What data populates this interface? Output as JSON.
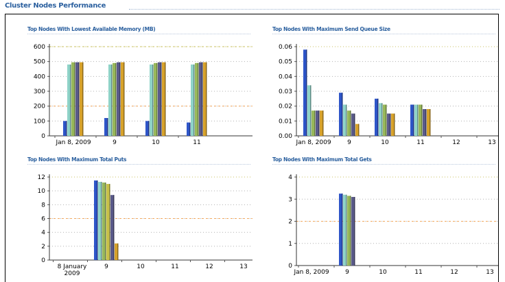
{
  "page": {
    "title": "Cluster Nodes Performance"
  },
  "colors": [
    "#2e55c8",
    "#8fd3c8",
    "#98b85a",
    "#5a5a8a",
    "#d7a22a"
  ],
  "chart_data": [
    {
      "id": "memory",
      "type": "bar",
      "title": "Top Nodes With Lowest Available Memory (MB)",
      "categories": [
        "Jan 8, 2009",
        "9",
        "10",
        "11"
      ],
      "series": [
        {
          "values": [
            100,
            120,
            100,
            90
          ]
        },
        {
          "values": [
            480,
            480,
            480,
            480
          ]
        },
        {
          "values": [
            495,
            490,
            490,
            490
          ]
        },
        {
          "values": [
            495,
            495,
            495,
            495
          ]
        },
        {
          "values": [
            495,
            495,
            495,
            495
          ]
        }
      ],
      "ylim": [
        0,
        600
      ],
      "yticks": [
        "0",
        "100",
        "200",
        "300",
        "400",
        "500",
        "600"
      ],
      "grid": true
    },
    {
      "id": "sendqueue",
      "type": "bar",
      "title": "Top Nodes With Maximum Send Queue Size",
      "categories": [
        "Jan 8, 2009",
        "9",
        "10",
        "11",
        "12",
        "13"
      ],
      "series": [
        {
          "values": [
            0.058,
            0.029,
            0.025,
            0.021,
            0,
            0
          ]
        },
        {
          "values": [
            0.034,
            0.021,
            0.022,
            0.021,
            0,
            0
          ]
        },
        {
          "values": [
            0.017,
            0.017,
            0.021,
            0.021,
            0,
            0
          ]
        },
        {
          "values": [
            0.017,
            0.015,
            0.015,
            0.018,
            0,
            0
          ]
        },
        {
          "values": [
            0.017,
            0.008,
            0.015,
            0.018,
            0,
            0
          ]
        }
      ],
      "ylim": [
        0,
        0.06
      ],
      "yticks": [
        "0.00",
        "0.01",
        "0.02",
        "0.03",
        "0.04",
        "0.05",
        "0.06"
      ],
      "grid": true
    },
    {
      "id": "puts",
      "type": "bar",
      "title": "Top Nodes With Maximum Total Puts",
      "categories": [
        "8 January\n2009",
        "9",
        "10",
        "11",
        "12",
        "13"
      ],
      "series": [
        {
          "values": [
            0,
            11.5,
            0,
            0,
            0,
            0
          ]
        },
        {
          "values": [
            0,
            11.3,
            0,
            0,
            0,
            0
          ]
        },
        {
          "values": [
            0,
            11.2,
            0,
            0,
            0,
            0
          ]
        },
        {
          "values": [
            0,
            11.0,
            0,
            0,
            0,
            0
          ]
        },
        {
          "values": [
            0,
            9.4,
            0,
            0,
            0,
            0
          ]
        },
        {
          "values": [
            0,
            2.4,
            0,
            0,
            0,
            0
          ]
        }
      ],
      "ylim": [
        0,
        12
      ],
      "yticks": [
        "0",
        "2",
        "4",
        "6",
        "8",
        "10",
        "12"
      ],
      "grid": true
    },
    {
      "id": "gets",
      "type": "bar",
      "title": "Top Nodes With Maximum Total Gets",
      "categories": [
        "Jan 8, 2009",
        "9",
        "10",
        "11",
        "12",
        "13"
      ],
      "series": [
        {
          "values": [
            0,
            3.25,
            0,
            0,
            0,
            0
          ]
        },
        {
          "values": [
            0,
            3.2,
            0,
            0,
            0,
            0
          ]
        },
        {
          "values": [
            0,
            3.15,
            0,
            0,
            0,
            0
          ]
        },
        {
          "values": [
            0,
            3.1,
            0,
            0,
            0,
            0
          ]
        }
      ],
      "ylim": [
        0,
        4
      ],
      "yticks": [
        "0",
        "1",
        "2",
        "3",
        "4"
      ],
      "grid": true
    }
  ]
}
